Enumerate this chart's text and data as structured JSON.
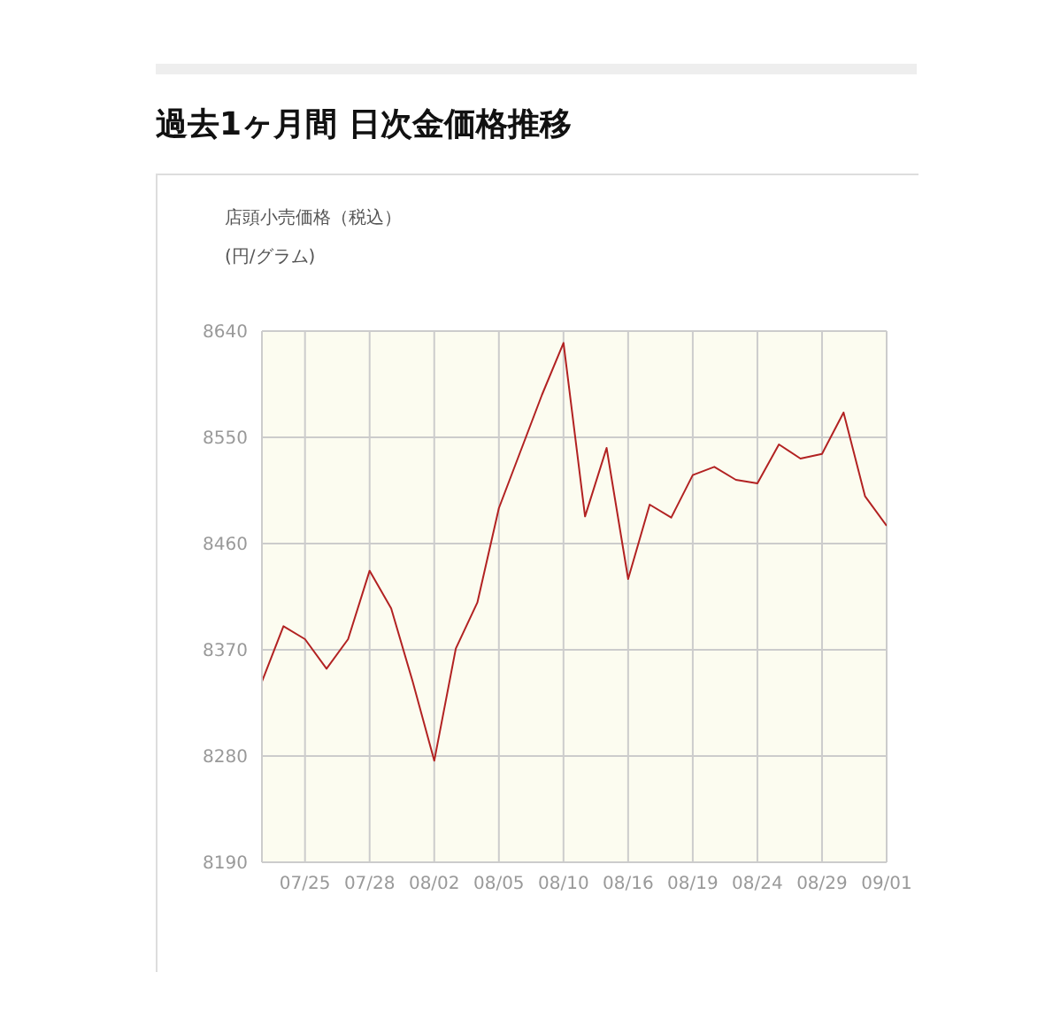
{
  "chart_data": {
    "type": "line",
    "title": "過去1ヶ月間 日次金価格推移",
    "subtitle": "店頭小売価格（税込）",
    "ylabel": "(円/グラム)",
    "categories": [
      null,
      null,
      "07/25",
      null,
      null,
      "07/28",
      null,
      null,
      "08/02",
      null,
      null,
      "08/05",
      null,
      null,
      "08/10",
      null,
      null,
      "08/16",
      null,
      null,
      "08/19",
      null,
      null,
      "08/24",
      null,
      null,
      "08/29",
      null,
      null,
      "09/01"
    ],
    "series": [
      {
        "color": "#b22222",
        "values": [
          8343,
          8390,
          8379,
          8354,
          8379,
          8437,
          8405,
          8343,
          8276,
          8371,
          8410,
          8490,
          8538,
          8586,
          8630,
          8483,
          8541,
          8430,
          8493,
          8482,
          8518,
          8525,
          8514,
          8511,
          8544,
          8532,
          8536,
          8571,
          8500,
          8475
        ]
      }
    ],
    "ylim": [
      8190,
      8640
    ],
    "yticks": [
      8190,
      8280,
      8370,
      8460,
      8550,
      8640
    ],
    "grid": true,
    "legend": false,
    "marker": "none",
    "line_style": "solid"
  }
}
